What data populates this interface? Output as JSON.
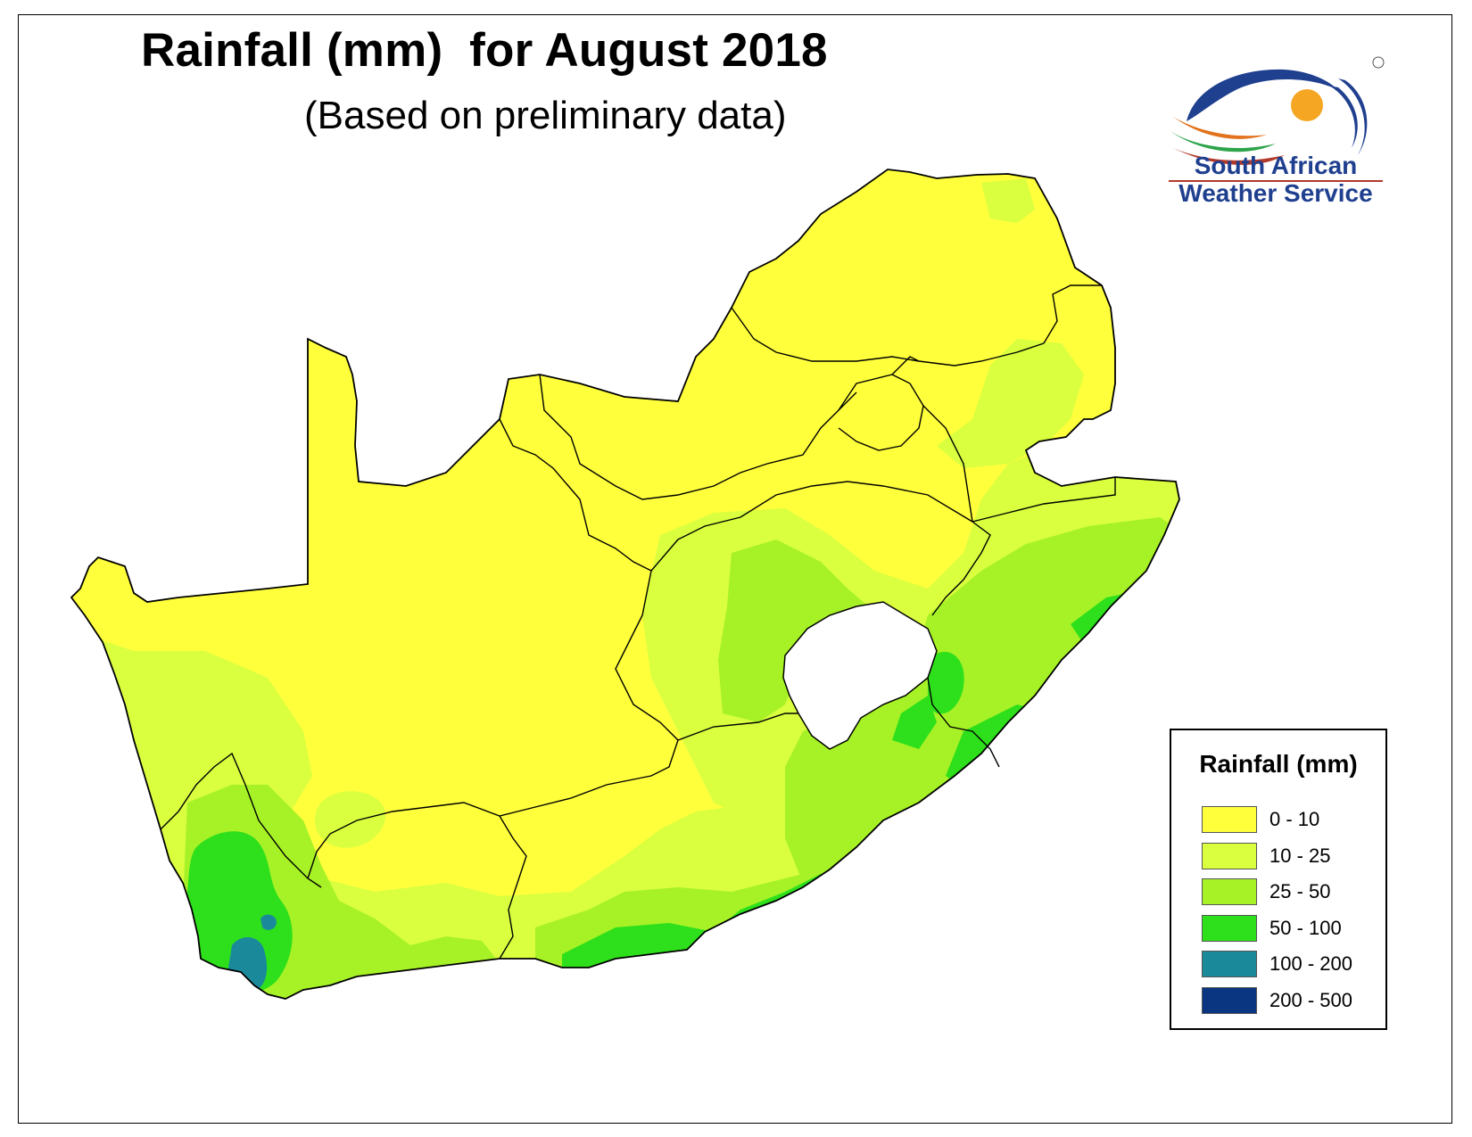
{
  "map": {
    "title": "Rainfall (mm)  for August 2018",
    "subtitle": "(Based on preliminary data)",
    "colors": {
      "0-10": "#ffff3c",
      "10-25": "#d9ff3f",
      "25-50": "#a6f226",
      "50-100": "#2ee01b",
      "100-200": "#1a8a9a",
      "200-500": "#0a3580",
      "lesotho": "#ffffff",
      "border": "#000000"
    }
  },
  "logo": {
    "line1": "South African",
    "line2": "Weather Service",
    "registered_mark": "®"
  },
  "legend": {
    "title": "Rainfall (mm)",
    "items": [
      {
        "label": "0 - 10",
        "color": "#ffff3c"
      },
      {
        "label": "10 - 25",
        "color": "#d9ff3f"
      },
      {
        "label": "25 - 50",
        "color": "#a6f226"
      },
      {
        "label": "50 - 100",
        "color": "#2ee01b"
      },
      {
        "label": "100 - 200",
        "color": "#1a8a9a"
      },
      {
        "label": "200 - 500",
        "color": "#0a3580"
      }
    ]
  }
}
